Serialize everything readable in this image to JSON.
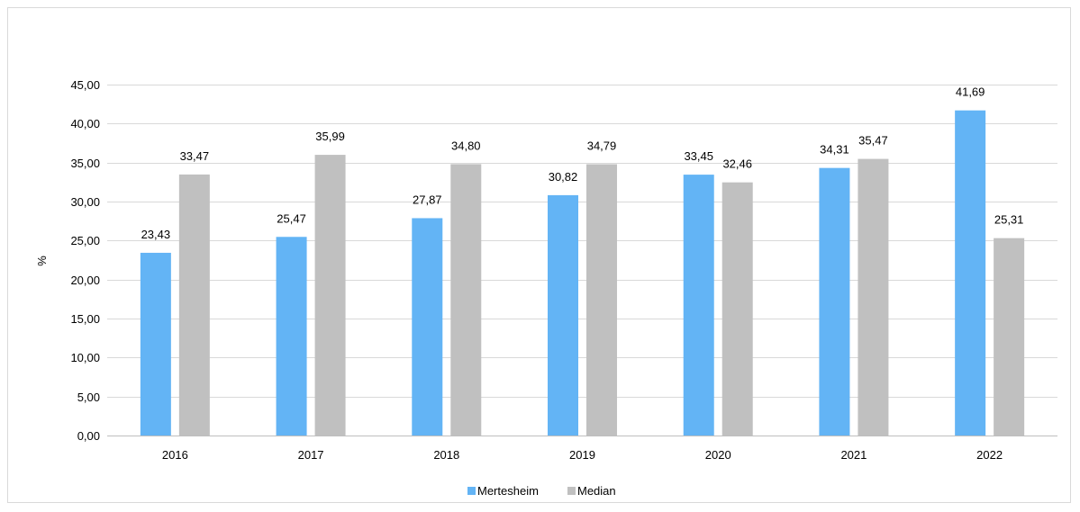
{
  "chart_data": {
    "type": "bar",
    "title": "",
    "xlabel": "",
    "ylabel": "%",
    "ylim": [
      0,
      45
    ],
    "yticks": [
      "0,00",
      "5,00",
      "10,00",
      "15,00",
      "20,00",
      "25,00",
      "30,00",
      "35,00",
      "40,00",
      "45,00"
    ],
    "ytick_values": [
      0,
      5,
      10,
      15,
      20,
      25,
      30,
      35,
      40,
      45
    ],
    "categories": [
      "2016",
      "2017",
      "2018",
      "2019",
      "2020",
      "2021",
      "2022"
    ],
    "series": [
      {
        "name": "Mertesheim",
        "color": "#63b4f5",
        "values": [
          23.43,
          25.47,
          27.87,
          30.82,
          33.45,
          34.31,
          41.69
        ],
        "labels": [
          "23,43",
          "25,47",
          "27,87",
          "30,82",
          "33,45",
          "34,31",
          "41,69"
        ]
      },
      {
        "name": "Median",
        "color": "#c0c0c0",
        "values": [
          33.47,
          35.99,
          34.8,
          34.79,
          32.46,
          35.47,
          25.31
        ],
        "labels": [
          "33,47",
          "35,99",
          "34,80",
          "34,79",
          "32,46",
          "35,47",
          "25,31"
        ]
      }
    ],
    "grid": true,
    "legend_position": "bottom"
  }
}
